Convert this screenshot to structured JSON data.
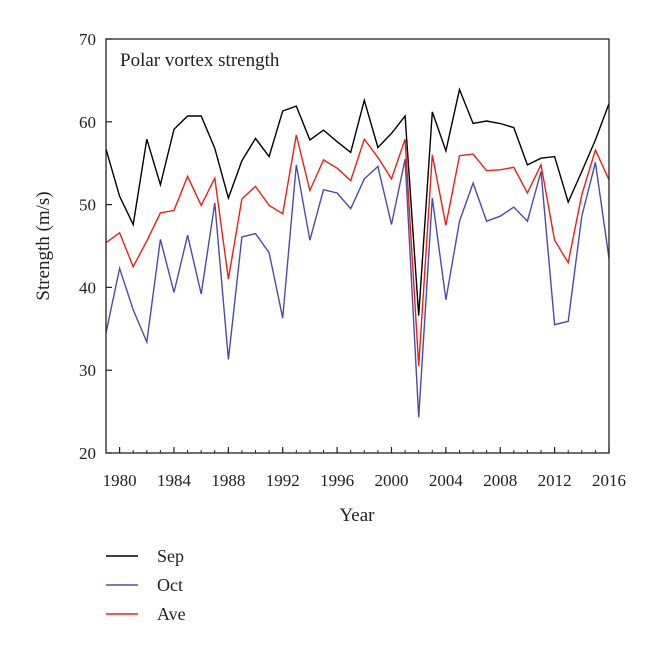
{
  "chart_data": {
    "type": "line",
    "annotation": "Polar vortex strength",
    "xlabel": "Year",
    "ylabel": "Strength (m/s)",
    "xlim": [
      1979,
      2016
    ],
    "ylim": [
      20,
      70
    ],
    "x_ticks": [
      1980,
      1984,
      1988,
      1992,
      1996,
      2000,
      2004,
      2008,
      2012,
      2016
    ],
    "y_ticks": [
      20,
      30,
      40,
      50,
      60,
      70
    ],
    "grid": false,
    "legend": "bottom-left, below plot",
    "x": [
      1979,
      1980,
      1981,
      1982,
      1983,
      1984,
      1985,
      1986,
      1987,
      1988,
      1989,
      1990,
      1991,
      1992,
      1993,
      1994,
      1995,
      1996,
      1997,
      1998,
      1999,
      2000,
      2001,
      2002,
      2003,
      2004,
      2005,
      2006,
      2007,
      2008,
      2009,
      2010,
      2011,
      2012,
      2013,
      2014,
      2015,
      2016
    ],
    "series": [
      {
        "name": "Sep",
        "color": "#000000",
        "values": [
          56.7,
          51.0,
          47.6,
          57.9,
          52.4,
          59.1,
          60.7,
          60.7,
          56.8,
          50.8,
          55.3,
          58.0,
          55.8,
          61.3,
          61.9,
          57.8,
          59.0,
          57.6,
          56.3,
          62.6,
          56.9,
          58.6,
          60.7,
          36.6,
          61.2,
          56.5,
          63.9,
          59.8,
          60.1,
          59.8,
          59.3,
          54.8,
          55.6,
          55.8,
          50.3,
          54.0,
          57.8,
          62.2
        ]
      },
      {
        "name": "Oct",
        "color": "#4b4ba8",
        "values": [
          34.5,
          42.3,
          37.3,
          33.4,
          45.8,
          39.4,
          46.3,
          39.2,
          50.2,
          31.3,
          46.1,
          46.5,
          44.2,
          36.3,
          54.8,
          45.7,
          51.8,
          51.4,
          49.5,
          53.1,
          54.6,
          47.6,
          55.5,
          24.3,
          50.8,
          38.5,
          48.0,
          52.6,
          48.0,
          48.6,
          49.7,
          48.0,
          54.0,
          35.5,
          35.9,
          48.6,
          55.1,
          43.5
        ]
      },
      {
        "name": "Ave",
        "color": "#e8201a",
        "values": [
          45.4,
          46.6,
          42.5,
          45.6,
          49.0,
          49.3,
          53.4,
          49.9,
          53.2,
          41.0,
          50.7,
          52.2,
          49.9,
          48.9,
          58.4,
          51.7,
          55.4,
          54.4,
          52.9,
          57.9,
          55.7,
          53.1,
          57.9,
          30.5,
          56.0,
          47.5,
          55.9,
          56.1,
          54.1,
          54.2,
          54.5,
          51.4,
          54.8,
          45.7,
          43.0,
          51.2,
          56.6,
          53.0
        ]
      }
    ]
  }
}
